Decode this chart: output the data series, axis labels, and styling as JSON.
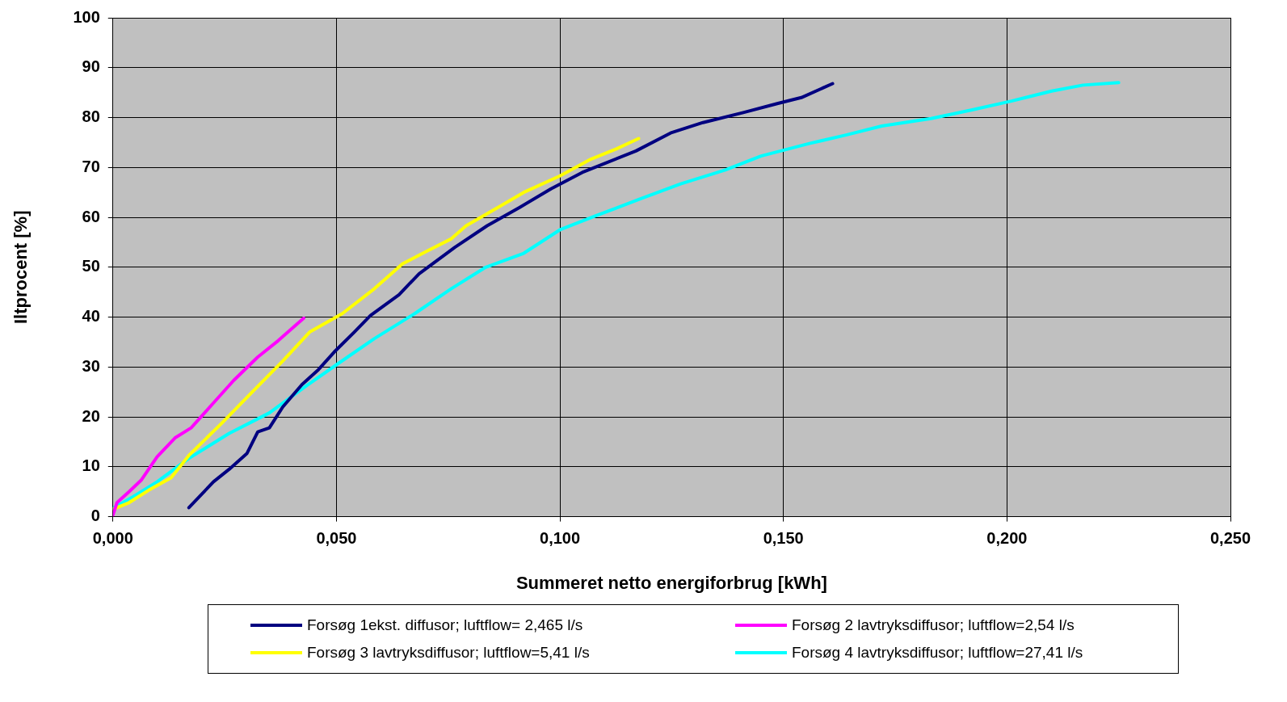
{
  "chart_data": {
    "type": "line",
    "xlabel": "Summeret netto energiforbrug [kWh]",
    "ylabel": "Iltprocent [%]",
    "xlim": [
      0,
      0.25
    ],
    "xticks": [
      {
        "value": 0,
        "label": "0,000"
      },
      {
        "value": 0.05,
        "label": "0,050"
      },
      {
        "value": 0.1,
        "label": "0,100"
      },
      {
        "value": 0.15,
        "label": "0,150"
      },
      {
        "value": 0.2,
        "label": "0,200"
      },
      {
        "value": 0.25,
        "label": "0,250"
      }
    ],
    "ylim": [
      0,
      100
    ],
    "yticks": [
      0,
      10,
      20,
      30,
      40,
      50,
      60,
      70,
      80,
      90,
      100
    ],
    "grid": true,
    "legend": "bottom",
    "marker": "none",
    "line_style": "solid",
    "series": [
      {
        "name": "Forsøg 1ekst. diffusor; luftflow= 2,465 l/s",
        "color": "#000080",
        "x": [
          0.017,
          0.0225,
          0.026,
          0.03,
          0.0324,
          0.035,
          0.038,
          0.0423,
          0.046,
          0.0495,
          0.054,
          0.0576,
          0.064,
          0.0685,
          0.0765,
          0.0837,
          0.091,
          0.098,
          0.105,
          0.117,
          0.125,
          0.132,
          0.141,
          0.1486,
          0.154,
          0.161
        ],
        "values": [
          1.8,
          7,
          9.5,
          12.7,
          17,
          17.8,
          22,
          26.5,
          29.5,
          33,
          37,
          40.3,
          44.5,
          48.7,
          54,
          58.3,
          62,
          65.7,
          69,
          73.3,
          77,
          79,
          81,
          82.8,
          84,
          86.8
        ]
      },
      {
        "name": "Forsøg 2 lavtryksdiffusor; luftflow=2,54 l/s",
        "color": "#ff00ff",
        "x": [
          0,
          0.0009,
          0.0036,
          0.0063,
          0.0099,
          0.0139,
          0.0175,
          0.0225,
          0.027,
          0.0324,
          0.037,
          0.0427
        ],
        "values": [
          0.3,
          2.8,
          5,
          7.3,
          12,
          15.8,
          17.8,
          22.8,
          27.3,
          32,
          35.3,
          39.8
        ]
      },
      {
        "name": "Forsøg 3 lavtryksdiffusor;  luftflow=5,41 l/s",
        "color": "#ffff00",
        "x": [
          0,
          0.0036,
          0.008,
          0.013,
          0.017,
          0.0243,
          0.0315,
          0.038,
          0.044,
          0.0513,
          0.0585,
          0.0648,
          0.0702,
          0.0757,
          0.079,
          0.0856,
          0.0919,
          0.1,
          0.107,
          0.1126,
          0.1176
        ],
        "values": [
          1.5,
          2.8,
          5.3,
          7.8,
          12.3,
          18.7,
          25.3,
          31.2,
          37,
          40.7,
          45.7,
          50.7,
          53.2,
          55.7,
          58.3,
          61.7,
          65,
          68.3,
          71.7,
          73.7,
          75.8
        ]
      },
      {
        "name": "Forsøg 4 lavtryksdiffusor; luftflow=27,41 l/s",
        "color": "#00ffff",
        "x": [
          0,
          0.0045,
          0.0099,
          0.017,
          0.026,
          0.035,
          0.0432,
          0.0504,
          0.0585,
          0.0675,
          0.0757,
          0.0834,
          0.0919,
          0.1,
          0.108,
          0.118,
          0.127,
          0.137,
          0.145,
          0.1558,
          0.164,
          0.172,
          0.183,
          0.192,
          0.201,
          0.21,
          0.217,
          0.225
        ],
        "values": [
          1.7,
          4,
          7,
          11.7,
          16.7,
          20.8,
          26.2,
          30.7,
          35.7,
          40.7,
          45.7,
          50,
          52.8,
          57.5,
          60.3,
          63.7,
          66.7,
          69.5,
          72.3,
          74.8,
          76.5,
          78.3,
          79.8,
          81.5,
          83.3,
          85.3,
          86.5,
          87
        ]
      }
    ]
  }
}
